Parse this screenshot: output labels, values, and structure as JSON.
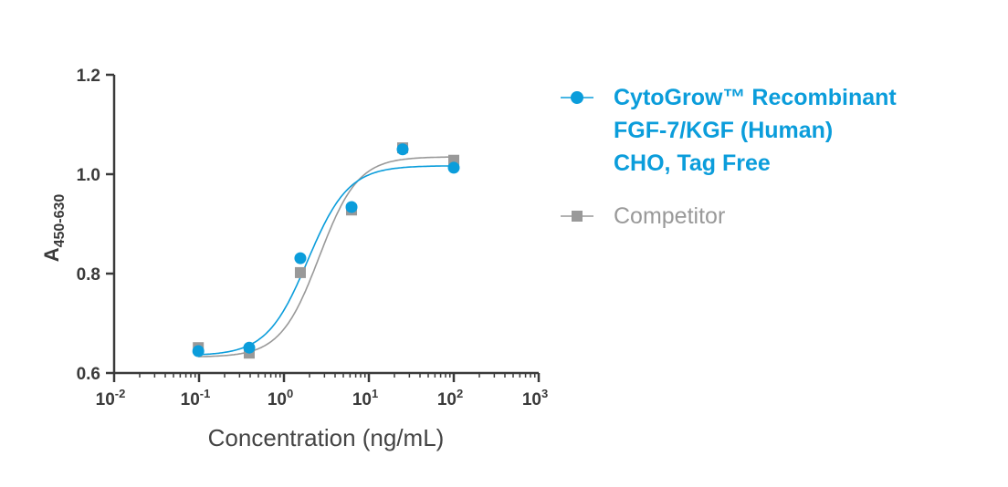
{
  "chart_data": {
    "type": "scatter",
    "title": "",
    "xlabel": "Concentration (ng/mL)",
    "ylabel": "A",
    "ylabel_subscript": "450-630",
    "x_scale": "log",
    "xlim": [
      0.01,
      1000
    ],
    "ylim": [
      0.6,
      1.2
    ],
    "x_ticks": [
      {
        "base": "10",
        "exp": "-2"
      },
      {
        "base": "10",
        "exp": "-1"
      },
      {
        "base": "10",
        "exp": "0"
      },
      {
        "base": "10",
        "exp": "1"
      },
      {
        "base": "10",
        "exp": "2"
      },
      {
        "base": "10",
        "exp": "3"
      }
    ],
    "y_ticks": [
      "0.6",
      "0.8",
      "1.0",
      "1.2"
    ],
    "grid": false,
    "legend_position": "right",
    "series": [
      {
        "name": "CytoGrow™ Recombinant FGF-7/KGF (Human) CHO, Tag Free",
        "name_lines": [
          "CytoGrow™ Recombinant",
          "FGF-7/KGF (Human)",
          "CHO, Tag Free"
        ],
        "color": "#0b9ddb",
        "marker": "circle",
        "x": [
          0.098,
          0.39,
          1.56,
          6.25,
          25,
          100
        ],
        "y": [
          0.644,
          0.651,
          0.831,
          0.934,
          1.05,
          1.013
        ],
        "fit": {
          "model": "4PL",
          "bottom": 0.635,
          "top": 1.017,
          "ec50": 1.9,
          "hill": 1.8
        }
      },
      {
        "name": "Competitor",
        "name_lines": [
          "Competitor"
        ],
        "color": "#999999",
        "marker": "square",
        "x": [
          0.098,
          0.39,
          1.56,
          6.25,
          25,
          100
        ],
        "y": [
          0.651,
          0.64,
          0.802,
          0.928,
          1.053,
          1.028
        ],
        "fit": {
          "model": "4PL",
          "bottom": 0.632,
          "top": 1.035,
          "ec50": 2.6,
          "hill": 1.9
        }
      }
    ]
  }
}
